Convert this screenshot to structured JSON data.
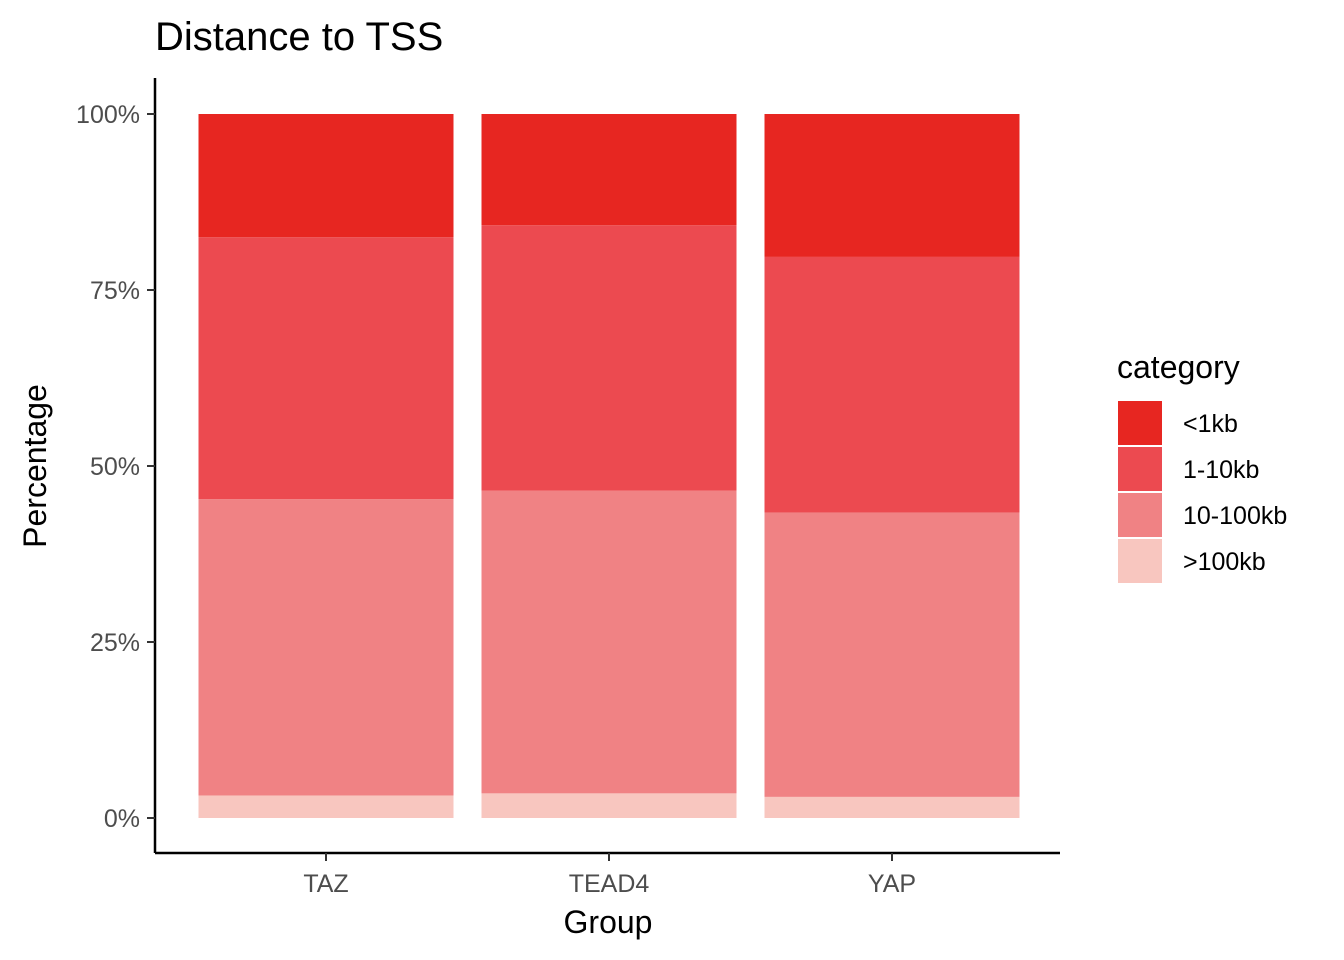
{
  "chart_data": {
    "type": "bar",
    "stacked": true,
    "title": "Distance to TSS",
    "xlabel": "Group",
    "ylabel": "Percentage",
    "categories": [
      "TAZ",
      "TEAD4",
      "YAP"
    ],
    "ylim": [
      0,
      100
    ],
    "yticks": [
      0,
      25,
      50,
      75,
      100
    ],
    "ytick_labels": [
      "0%",
      "25%",
      "50%",
      "75%",
      "100%"
    ],
    "grid": false,
    "legend": {
      "title": "category",
      "position": "right"
    },
    "series": [
      {
        "name": "<1kb",
        "color": "#E72621",
        "values": [
          17.5,
          15.8,
          20.3
        ]
      },
      {
        "name": "1-10kb",
        "color": "#EC4A50",
        "values": [
          37.2,
          37.7,
          36.3
        ]
      },
      {
        "name": "10-100kb",
        "color": "#F08284",
        "values": [
          42.1,
          43.0,
          40.4
        ]
      },
      {
        "name": ">100kb",
        "color": "#F8C6BF",
        "values": [
          3.2,
          3.5,
          3.0
        ]
      }
    ]
  }
}
